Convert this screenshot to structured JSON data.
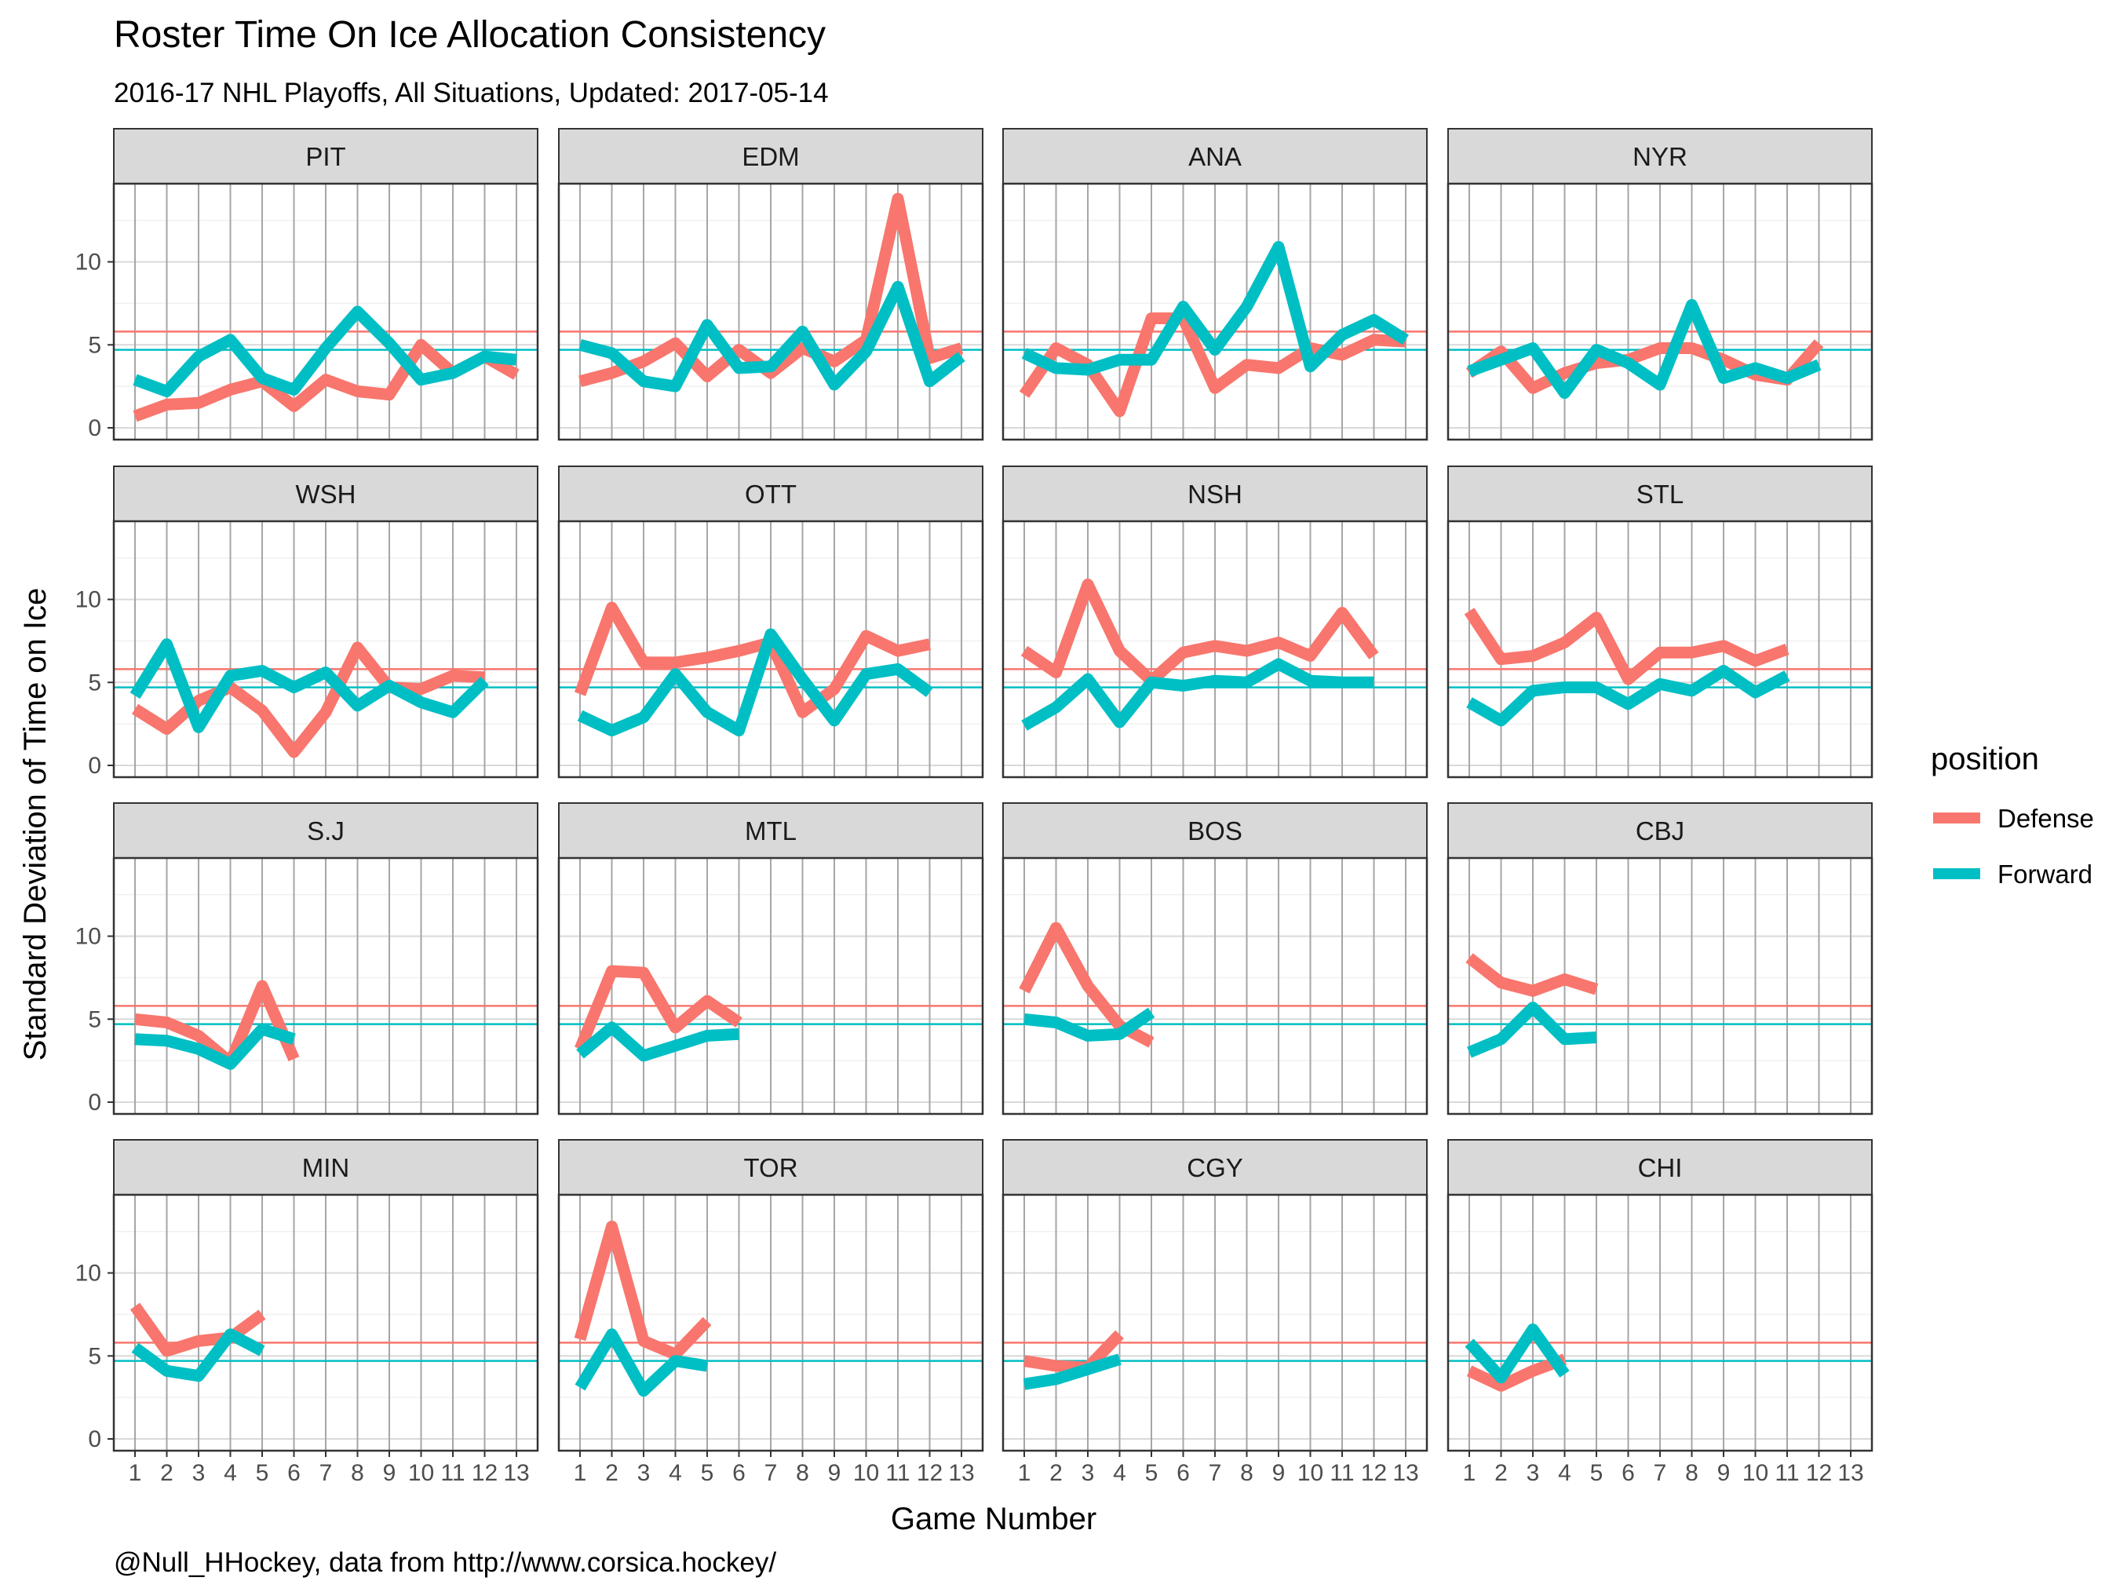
{
  "chart_data": {
    "type": "line",
    "title": "Roster Time On Ice Allocation Consistency",
    "subtitle": "2016-17 NHL Playoffs, All Situations, Updated: 2017-05-14",
    "caption": "@Null_HHockey, data from http://www.corsica.hockey/",
    "xlabel": "Game Number",
    "ylabel": "Standard Deviation of Time on Ice",
    "x_ticks": [
      "1",
      "2",
      "3",
      "4",
      "5",
      "6",
      "7",
      "8",
      "9",
      "10",
      "11",
      "12",
      "13"
    ],
    "y_ticks": [
      0,
      5,
      10
    ],
    "xlim": [
      1,
      13
    ],
    "ylim": [
      0,
      14
    ],
    "grid": true,
    "facet_layout": "4x4",
    "legend": {
      "title": "position",
      "placement": "right",
      "entries": [
        {
          "name": "Defense",
          "color": "#F8766D"
        },
        {
          "name": "Forward",
          "color": "#00BFC4"
        }
      ]
    },
    "reference_lines": [
      {
        "series": "Defense",
        "value": 5.8,
        "color": "#F8766D"
      },
      {
        "series": "Forward",
        "value": 4.7,
        "color": "#00BFC4"
      }
    ],
    "series_names": [
      "Defense",
      "Forward"
    ],
    "panels": [
      {
        "team": "PIT",
        "defense": [
          0.7,
          1.4,
          1.5,
          2.3,
          2.8,
          1.3,
          2.9,
          2.2,
          2.0,
          5.0,
          3.3,
          4.3,
          3.2
        ],
        "forward": [
          2.9,
          2.2,
          4.3,
          5.3,
          3.0,
          2.3,
          4.8,
          7.0,
          5.1,
          2.9,
          3.3,
          4.3,
          4.1
        ]
      },
      {
        "team": "EDM",
        "defense": [
          2.8,
          3.3,
          4.0,
          5.1,
          3.1,
          4.7,
          3.3,
          4.8,
          4.0,
          5.3,
          13.8,
          4.2,
          4.8
        ],
        "forward": [
          5.0,
          4.5,
          2.8,
          2.5,
          6.2,
          3.6,
          3.7,
          5.8,
          2.6,
          4.6,
          8.5,
          2.8,
          4.3
        ]
      },
      {
        "team": "ANA",
        "defense": [
          2.0,
          4.8,
          3.8,
          1.0,
          6.6,
          6.6,
          2.4,
          3.8,
          3.6,
          4.8,
          4.4,
          5.3,
          5.2
        ],
        "forward": [
          4.5,
          3.6,
          3.5,
          4.1,
          4.1,
          7.3,
          4.7,
          7.3,
          10.9,
          3.7,
          5.6,
          6.5,
          5.3
        ]
      },
      {
        "team": "NYR",
        "defense": [
          3.3,
          4.6,
          2.4,
          3.3,
          3.9,
          4.1,
          4.8,
          4.8,
          4.1,
          3.2,
          2.9,
          5.1
        ],
        "forward": [
          3.4,
          4.1,
          4.8,
          2.1,
          4.7,
          3.9,
          2.6,
          7.4,
          3.0,
          3.6,
          3.0,
          3.8
        ]
      },
      {
        "team": "WSH",
        "defense": [
          3.4,
          2.2,
          3.9,
          4.7,
          3.3,
          0.8,
          3.2,
          7.1,
          4.7,
          4.6,
          5.4,
          5.3
        ],
        "forward": [
          4.2,
          7.3,
          2.3,
          5.4,
          5.7,
          4.7,
          5.6,
          3.6,
          4.8,
          3.8,
          3.2,
          5.1
        ]
      },
      {
        "team": "OTT",
        "defense": [
          4.3,
          9.5,
          6.2,
          6.2,
          6.5,
          6.9,
          7.4,
          3.2,
          4.6,
          7.8,
          6.9,
          7.3
        ],
        "forward": [
          3.0,
          2.1,
          2.9,
          5.5,
          3.2,
          2.1,
          7.9,
          5.2,
          2.7,
          5.5,
          5.8,
          4.4
        ]
      },
      {
        "team": "NSH",
        "defense": [
          6.9,
          5.6,
          10.9,
          6.9,
          5.1,
          6.8,
          7.2,
          6.9,
          7.4,
          6.6,
          9.2,
          6.6
        ],
        "forward": [
          2.4,
          3.5,
          5.2,
          2.6,
          5.0,
          4.8,
          5.1,
          5.0,
          6.1,
          5.1,
          5.0,
          5.0
        ]
      },
      {
        "team": "STL",
        "defense": [
          9.3,
          6.4,
          6.6,
          7.4,
          8.9,
          5.2,
          6.8,
          6.8,
          7.2,
          6.3,
          7.0
        ],
        "forward": [
          3.8,
          2.7,
          4.5,
          4.7,
          4.7,
          3.7,
          4.9,
          4.5,
          5.7,
          4.4,
          5.4
        ]
      },
      {
        "team": "S.J",
        "defense": [
          5.0,
          4.8,
          4.0,
          2.4,
          7.0,
          2.6
        ],
        "forward": [
          3.8,
          3.7,
          3.2,
          2.3,
          4.4,
          3.8
        ]
      },
      {
        "team": "MTL",
        "defense": [
          3.2,
          7.9,
          7.8,
          4.5,
          6.1,
          4.8
        ],
        "forward": [
          2.9,
          4.5,
          2.8,
          3.4,
          4.0,
          4.1
        ]
      },
      {
        "team": "BOS",
        "defense": [
          6.7,
          10.5,
          7.0,
          4.6,
          3.6
        ],
        "forward": [
          5.0,
          4.8,
          4.0,
          4.1,
          5.4
        ]
      },
      {
        "team": "CBJ",
        "defense": [
          8.7,
          7.2,
          6.7,
          7.4,
          6.8
        ],
        "forward": [
          3.0,
          3.8,
          5.7,
          3.8,
          3.9
        ]
      },
      {
        "team": "MIN",
        "defense": [
          8.0,
          5.3,
          5.9,
          6.1,
          7.5
        ],
        "forward": [
          5.5,
          4.1,
          3.8,
          6.3,
          5.3
        ]
      },
      {
        "team": "TOR",
        "defense": [
          6.0,
          12.8,
          5.9,
          5.1,
          7.1
        ],
        "forward": [
          3.1,
          6.3,
          2.9,
          4.7,
          4.4
        ]
      },
      {
        "team": "CGY",
        "defense": [
          4.7,
          4.4,
          4.3,
          6.3
        ],
        "forward": [
          3.3,
          3.6,
          4.2,
          4.8
        ]
      },
      {
        "team": "CHI",
        "defense": [
          4.1,
          3.2,
          4.1,
          4.8
        ],
        "forward": [
          5.8,
          3.7,
          6.6,
          3.9
        ]
      }
    ]
  }
}
